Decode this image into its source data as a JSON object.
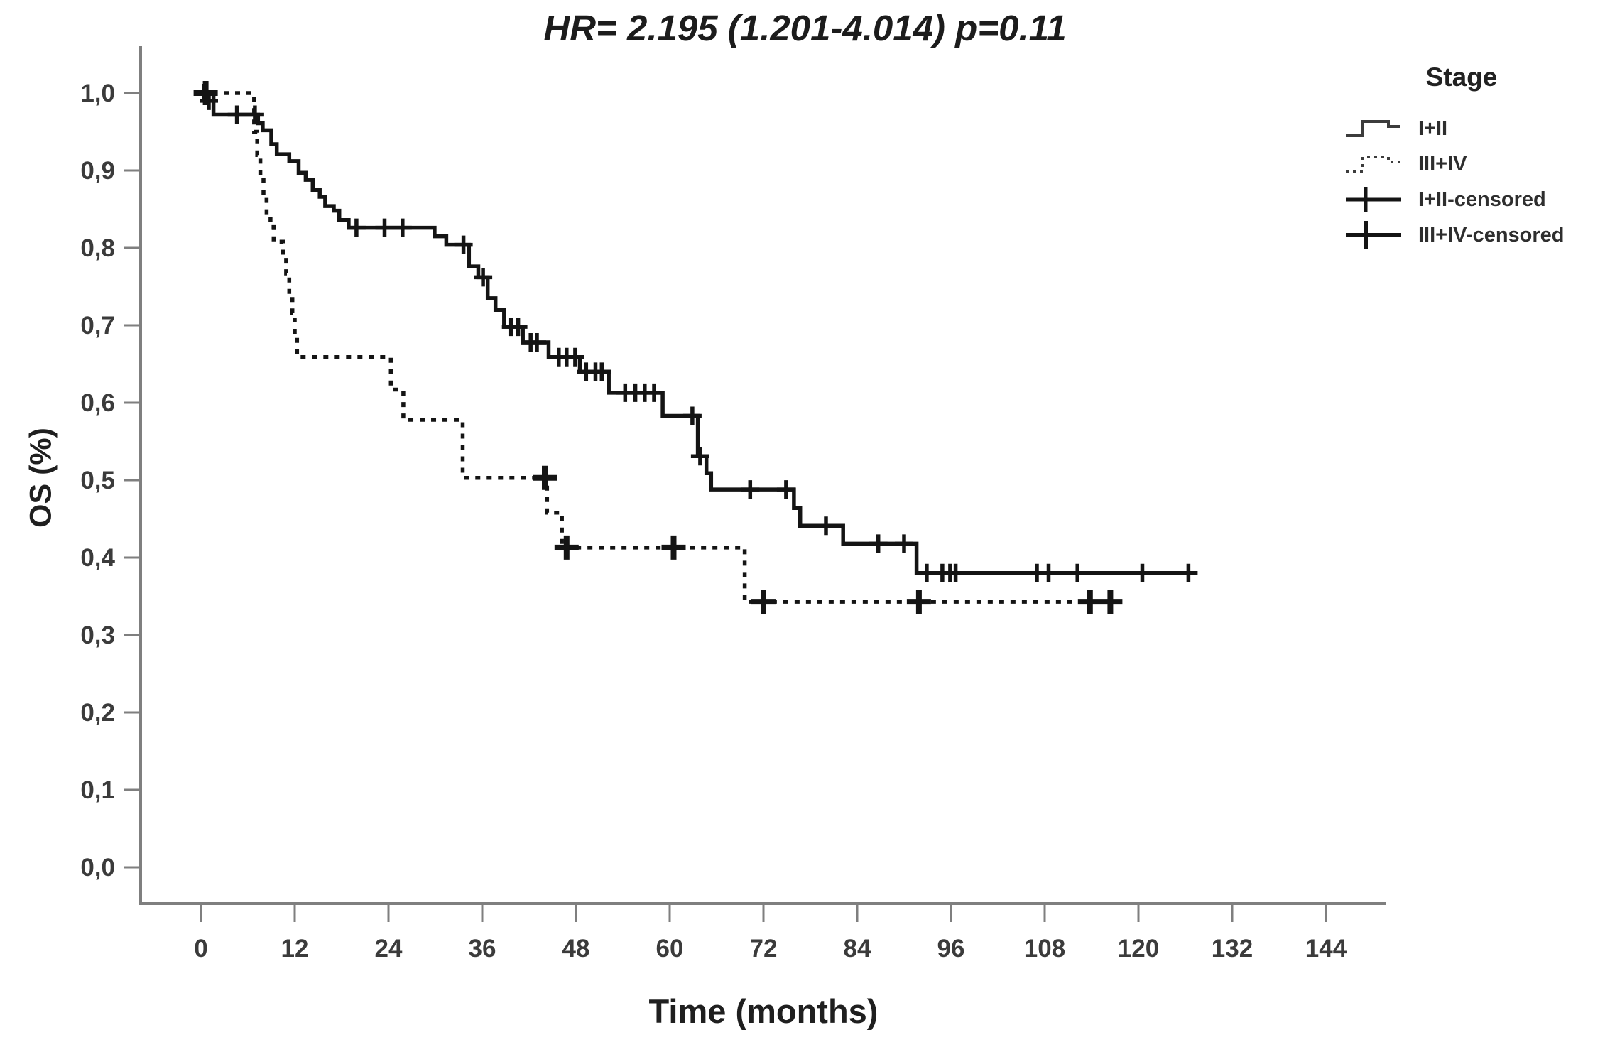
{
  "title": "HR= 2.195 (1.201-4.014) p=0.11",
  "y_axis_title": "OS (%)",
  "x_axis_title": "Time (months)",
  "legend": {
    "title": "Stage",
    "items": [
      {
        "label": "I+II"
      },
      {
        "label": "III+IV"
      },
      {
        "label": "I+II-censored"
      },
      {
        "label": "III+IV-censored"
      }
    ]
  },
  "chart_data": {
    "type": "line",
    "subtype": "kaplan-meier-step-function",
    "title": "HR= 2.195 (1.201-4.014) p=0.11",
    "xlabel": "Time (months)",
    "ylabel": "OS (%)",
    "xlim": [
      0,
      152
    ],
    "ylim": [
      0,
      1.0
    ],
    "x_ticks": [
      0,
      12,
      24,
      36,
      48,
      60,
      72,
      84,
      96,
      108,
      120,
      132,
      144
    ],
    "y_ticks": [
      {
        "value": 1.0,
        "label": "1,0"
      },
      {
        "value": 0.9,
        "label": "0,9"
      },
      {
        "value": 0.8,
        "label": "0,8"
      },
      {
        "value": 0.7,
        "label": "0,7"
      },
      {
        "value": 0.6,
        "label": "0,6"
      },
      {
        "value": 0.5,
        "label": "0,5"
      },
      {
        "value": 0.4,
        "label": "0,4"
      },
      {
        "value": 0.3,
        "label": "0,3"
      },
      {
        "value": 0.2,
        "label": "0,2"
      },
      {
        "value": 0.1,
        "label": "0,1"
      },
      {
        "value": 0.0,
        "label": "0,0"
      }
    ],
    "grid": false,
    "legend_position": "top-right",
    "line_color": "#141414",
    "axis_color": "#7f7f7f",
    "series": [
      {
        "id": "i-ii",
        "name": "I+II",
        "line": "solid",
        "end_time": 127.3,
        "steps": [
          [
            0,
            1.0
          ],
          [
            1.6,
            0.972
          ],
          [
            7.3,
            0.961
          ],
          [
            7.9,
            0.952
          ],
          [
            9.0,
            0.934
          ],
          [
            9.7,
            0.921
          ],
          [
            11.3,
            0.912
          ],
          [
            12.5,
            0.897
          ],
          [
            13.4,
            0.888
          ],
          [
            14.3,
            0.875
          ],
          [
            15.2,
            0.866
          ],
          [
            15.9,
            0.854
          ],
          [
            17.0,
            0.848
          ],
          [
            17.7,
            0.836
          ],
          [
            18.9,
            0.826
          ],
          [
            29.9,
            0.815
          ],
          [
            31.4,
            0.804
          ],
          [
            34.3,
            0.776
          ],
          [
            35.5,
            0.762
          ],
          [
            36.7,
            0.735
          ],
          [
            37.7,
            0.72
          ],
          [
            38.8,
            0.698
          ],
          [
            41.2,
            0.678
          ],
          [
            44.5,
            0.659
          ],
          [
            48.5,
            0.64
          ],
          [
            52.2,
            0.613
          ],
          [
            59.1,
            0.583
          ],
          [
            63.6,
            0.531
          ],
          [
            64.7,
            0.509
          ],
          [
            65.3,
            0.488
          ],
          [
            75.9,
            0.464
          ],
          [
            76.7,
            0.441
          ],
          [
            82.2,
            0.418
          ],
          [
            91.6,
            0.38
          ]
        ],
        "censored": [
          [
            0.4,
            1.0
          ],
          [
            1.0,
            0.99
          ],
          [
            4.6,
            0.972
          ],
          [
            6.9,
            0.972
          ],
          [
            19.9,
            0.826
          ],
          [
            23.5,
            0.826
          ],
          [
            25.8,
            0.826
          ],
          [
            33.6,
            0.804
          ],
          [
            36.1,
            0.762
          ],
          [
            39.7,
            0.698
          ],
          [
            40.6,
            0.698
          ],
          [
            42.2,
            0.678
          ],
          [
            43.0,
            0.678
          ],
          [
            45.8,
            0.659
          ],
          [
            46.8,
            0.659
          ],
          [
            47.9,
            0.659
          ],
          [
            49.3,
            0.64
          ],
          [
            50.5,
            0.64
          ],
          [
            51.3,
            0.64
          ],
          [
            54.3,
            0.613
          ],
          [
            55.6,
            0.613
          ],
          [
            56.8,
            0.613
          ],
          [
            58.0,
            0.613
          ],
          [
            62.9,
            0.583
          ],
          [
            63.9,
            0.531
          ],
          [
            70.3,
            0.488
          ],
          [
            74.9,
            0.488
          ],
          [
            80.0,
            0.441
          ],
          [
            86.7,
            0.418
          ],
          [
            90.0,
            0.418
          ],
          [
            92.9,
            0.38
          ],
          [
            94.9,
            0.38
          ],
          [
            95.9,
            0.38
          ],
          [
            96.6,
            0.38
          ],
          [
            107.0,
            0.38
          ],
          [
            108.5,
            0.38
          ],
          [
            112.2,
            0.38
          ],
          [
            120.5,
            0.38
          ],
          [
            126.4,
            0.38
          ]
        ]
      },
      {
        "id": "iii-iv",
        "name": "III+IV",
        "line": "dashed",
        "end_time": 117.4,
        "steps": [
          [
            0,
            1.0
          ],
          [
            6.8,
            0.95
          ],
          [
            7.2,
            0.92
          ],
          [
            7.6,
            0.89
          ],
          [
            8.0,
            0.862
          ],
          [
            8.4,
            0.843
          ],
          [
            8.9,
            0.827
          ],
          [
            9.3,
            0.808
          ],
          [
            10.5,
            0.79
          ],
          [
            10.9,
            0.767
          ],
          [
            11.3,
            0.74
          ],
          [
            11.7,
            0.716
          ],
          [
            12.0,
            0.688
          ],
          [
            12.3,
            0.659
          ],
          [
            24.3,
            0.617
          ],
          [
            25.9,
            0.578
          ],
          [
            33.5,
            0.503
          ],
          [
            44.3,
            0.458
          ],
          [
            46.2,
            0.413
          ],
          [
            69.6,
            0.343
          ]
        ],
        "censored": [
          [
            0.6,
            1.0
          ],
          [
            44.0,
            0.503
          ],
          [
            46.8,
            0.413
          ],
          [
            60.5,
            0.413
          ],
          [
            72.0,
            0.343
          ],
          [
            91.9,
            0.343
          ],
          [
            113.8,
            0.343
          ],
          [
            116.4,
            0.343
          ]
        ]
      }
    ]
  }
}
